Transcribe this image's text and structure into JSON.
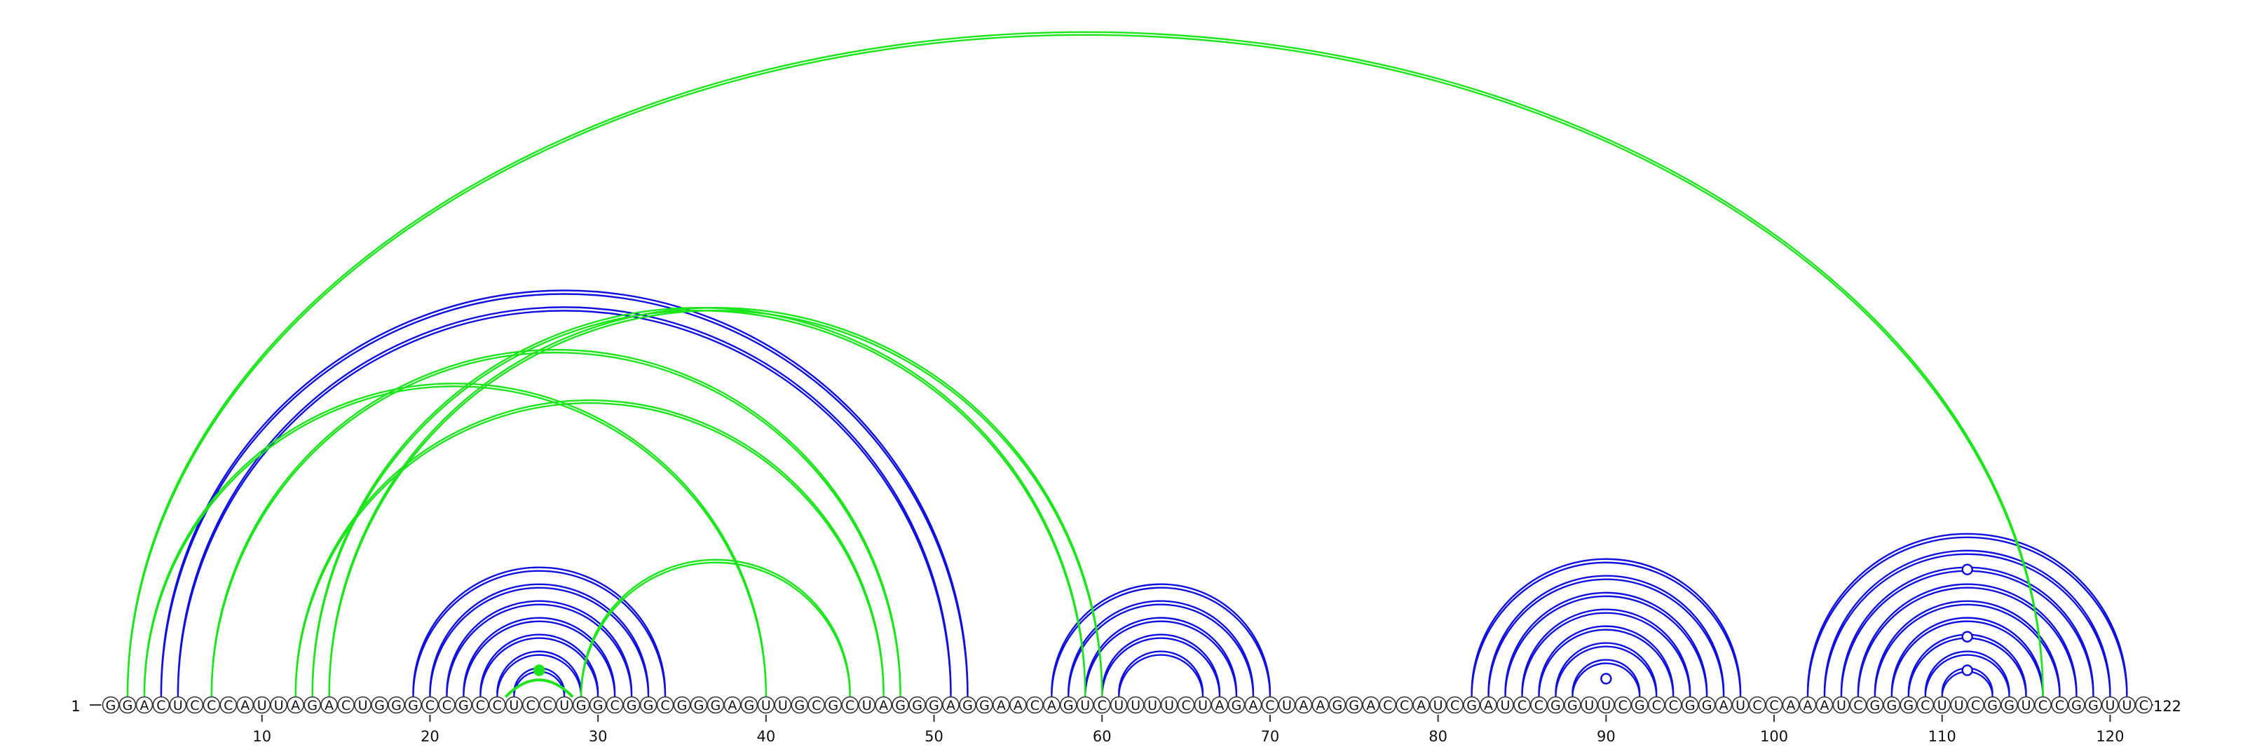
{
  "diagram": {
    "type": "rna-arc-diagram",
    "sequence": "GGACUCCCAUUAGACUGGGCCGCCUCCUGGCGGCGGGAGUUGCGCUAGGGAGGAACAGUCUUUUCUAGACUAAGGACCAUCGAUCCGGUUCGCCGGAUCCAAAUCGGGCUUCGGUCCGGUUC",
    "start_label": "1",
    "end_label": "122",
    "ticks": [
      10,
      20,
      30,
      40,
      50,
      60,
      70,
      80,
      90,
      100,
      110,
      120
    ],
    "colors": {
      "background": "#ffffff",
      "blue_pairs": "#1010e0",
      "green_pairs": "#1be51b",
      "nucleotide_stroke": "#333333",
      "axis": "#333333",
      "text": "#111111"
    },
    "blue_pairs": [
      [
        4,
        52
      ],
      [
        5,
        51
      ],
      [
        19,
        34
      ],
      [
        20,
        33
      ],
      [
        21,
        32
      ],
      [
        22,
        31
      ],
      [
        23,
        30
      ],
      [
        24,
        29
      ],
      [
        25,
        28
      ],
      [
        57,
        70
      ],
      [
        58,
        69
      ],
      [
        59,
        68
      ],
      [
        60,
        67
      ],
      [
        61,
        66
      ],
      [
        82,
        98
      ],
      [
        83,
        97
      ],
      [
        84,
        96
      ],
      [
        85,
        95
      ],
      [
        86,
        94
      ],
      [
        87,
        93
      ],
      [
        88,
        92
      ],
      [
        102,
        121
      ],
      [
        103,
        120
      ],
      [
        104,
        119
      ],
      [
        105,
        118
      ],
      [
        106,
        117
      ],
      [
        107,
        116
      ],
      [
        108,
        115
      ],
      [
        109,
        114
      ],
      [
        110,
        113
      ]
    ],
    "green_pairs": [
      [
        2,
        116
      ],
      [
        3,
        40
      ],
      [
        7,
        48
      ],
      [
        12,
        47
      ],
      [
        13,
        59
      ],
      [
        14,
        60
      ],
      [
        29,
        45
      ]
    ],
    "green_loop": {
      "from": 25,
      "to": 28
    },
    "markers": [
      {
        "between": [
          89,
          91
        ],
        "level": 1,
        "style": "open"
      },
      {
        "between": [
          110,
          113
        ],
        "level": 1,
        "style": "open"
      },
      {
        "between": [
          108,
          115
        ],
        "level": 2,
        "style": "open"
      },
      {
        "between": [
          104,
          119
        ],
        "level": 3,
        "style": "open"
      },
      {
        "between": [
          25,
          28
        ],
        "level": 1,
        "style": "filled"
      }
    ]
  }
}
